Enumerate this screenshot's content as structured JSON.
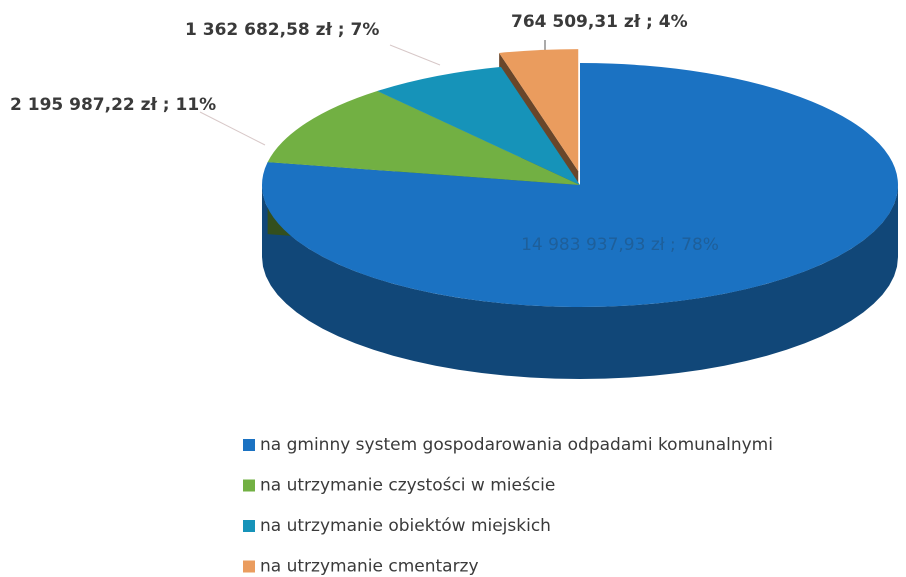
{
  "chart_data": {
    "type": "pie",
    "categories": [
      "na gminny system gospodarowania odpadami komunalnymi",
      "na utrzymanie czystości w mieście",
      "na utrzymanie obiektów miejskich",
      "na utrzymanie cmentarzy"
    ],
    "values": [
      78,
      11,
      7,
      4
    ],
    "value_labels": [
      "14 983 937,93 zł ; 78%",
      "2 195 987,22 zł ; 11%",
      "1 362 682,58 zł ; 7%",
      "764 509,31 zł ; 4%"
    ],
    "colors": [
      "#1b72c2",
      "#72b043",
      "#1693b9",
      "#ea9c5e"
    ],
    "legend": "bottom"
  }
}
